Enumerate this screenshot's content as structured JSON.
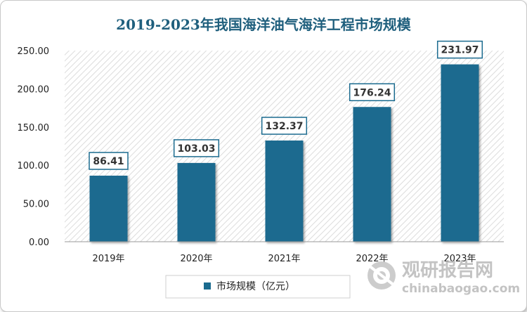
{
  "chart_data": {
    "type": "bar",
    "title": "2019-2023年我国海洋油气海洋工程市场规模",
    "categories": [
      "2019年",
      "2020年",
      "2021年",
      "2022年",
      "2023年"
    ],
    "series": [
      {
        "name": "市场规模（亿元）",
        "values": [
          86.41,
          103.03,
          132.37,
          176.24,
          231.97
        ]
      }
    ],
    "data_labels": [
      "86.41",
      "103.03",
      "132.37",
      "176.24",
      "231.97"
    ],
    "yticks": [
      "0.00",
      "50.00",
      "100.00",
      "150.00",
      "200.00",
      "250.00"
    ],
    "ylim": [
      0,
      250
    ],
    "grid": false,
    "legend_position": "bottom",
    "colors": {
      "bar": "#1b6b8f",
      "label_border": "#1b6b8f",
      "title": "#1f5f7d"
    }
  },
  "watermark": {
    "name": "观研报告网",
    "domain": "chinabaogao.com"
  }
}
